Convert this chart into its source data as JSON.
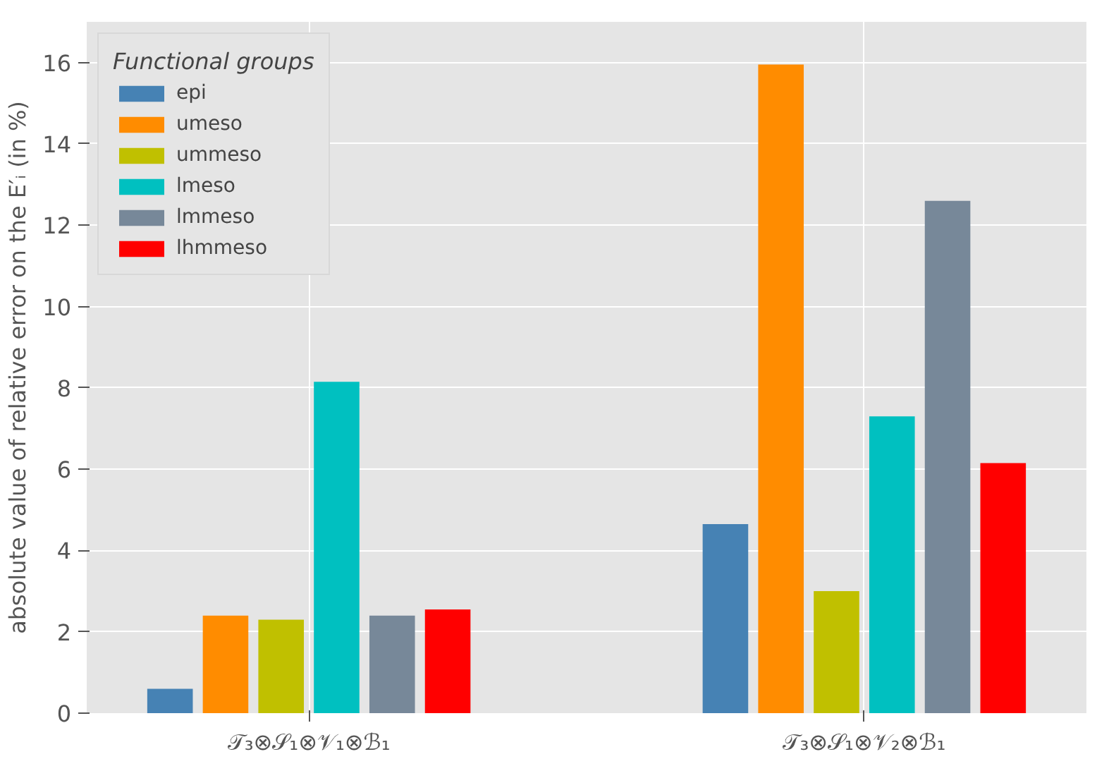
{
  "chart_data": {
    "type": "bar",
    "ylabel": "absolute value of relative error on the E′ᵢ (in %)",
    "legend_title": "Functional groups",
    "categories": [
      "𝒯₃⊗𝒮₁⊗𝒱₁⊗ℬ₁",
      "𝒯₃⊗𝒮₁⊗𝒱₂⊗ℬ₁"
    ],
    "series": [
      {
        "name": "epi",
        "color": "#4682b4",
        "values": [
          0.6,
          4.65
        ]
      },
      {
        "name": "umeso",
        "color": "#ff8c00",
        "values": [
          2.4,
          15.95
        ]
      },
      {
        "name": "ummeso",
        "color": "#c0c000",
        "values": [
          2.3,
          3.0
        ]
      },
      {
        "name": "lmeso",
        "color": "#00c0c0",
        "values": [
          8.15,
          7.3
        ]
      },
      {
        "name": "lmmeso",
        "color": "#778899",
        "values": [
          2.4,
          12.6
        ]
      },
      {
        "name": "lhmmeso",
        "color": "#ff0000",
        "values": [
          2.55,
          6.15
        ]
      }
    ],
    "ylim": [
      0,
      17
    ],
    "yticks": [
      0,
      2,
      4,
      6,
      8,
      10,
      12,
      14,
      16
    ],
    "grid": true,
    "legend": "top left"
  }
}
